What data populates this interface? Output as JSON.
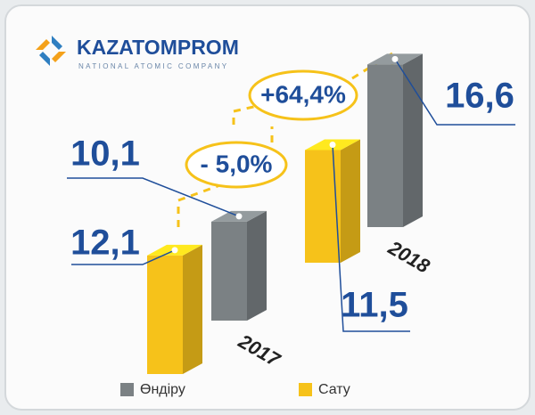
{
  "logo": {
    "name": "KAZATOMPROM",
    "tagline": "NATIONAL ATOMIC COMPANY"
  },
  "chart_data": {
    "type": "bar3d",
    "categories": [
      "2017",
      "2018"
    ],
    "series": [
      {
        "name": "Өндіру",
        "color": "#7b8184",
        "values": [
          10.1,
          16.6
        ],
        "value_labels": [
          "10,1",
          "16,6"
        ]
      },
      {
        "name": "Сату",
        "color": "#f6c21a",
        "values": [
          12.1,
          11.5
        ],
        "value_labels": [
          "12,1",
          "11,5"
        ]
      }
    ],
    "annotations": [
      "- 5,0%",
      "+64,4%"
    ]
  }
}
